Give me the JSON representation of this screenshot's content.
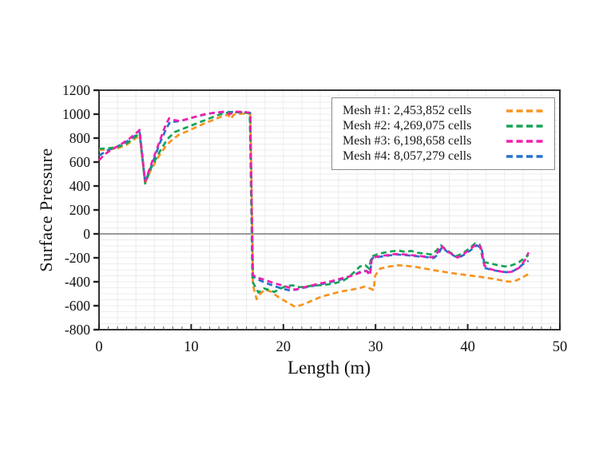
{
  "chart_data": {
    "type": "line",
    "title": "",
    "xlabel": "Length (m)",
    "ylabel": "Surface Pressure",
    "xlim": [
      0,
      50
    ],
    "ylim": [
      -800,
      1200
    ],
    "xticks": [
      0,
      10,
      20,
      30,
      40,
      50
    ],
    "yticks": [
      1200,
      1000,
      800,
      600,
      400,
      200,
      0,
      -200,
      -400,
      -600,
      -800
    ],
    "grid": {
      "on": true,
      "minor_x_step": 2,
      "minor_y_step": 50,
      "color": "#ececec"
    },
    "zero_line_color": "#7a7a7a",
    "axis_color": "#333333",
    "legend_position": "top-right",
    "line_style": "dashed",
    "series": [
      {
        "name": "Mesh #1: 2,453,852 cells",
        "color": "#F7941E",
        "points": [
          [
            0,
            700
          ],
          [
            1,
            705
          ],
          [
            2,
            715
          ],
          [
            3,
            745
          ],
          [
            4,
            800
          ],
          [
            4.4,
            820
          ],
          [
            5,
            425
          ],
          [
            5.6,
            530
          ],
          [
            6.5,
            650
          ],
          [
            7.3,
            740
          ],
          [
            8,
            790
          ],
          [
            8.7,
            830
          ],
          [
            9.5,
            855
          ],
          [
            10.5,
            890
          ],
          [
            11.5,
            925
          ],
          [
            12.5,
            955
          ],
          [
            13.3,
            980
          ],
          [
            14,
            995
          ],
          [
            14.3,
            960
          ],
          [
            14.6,
            995
          ],
          [
            15.5,
            1005
          ],
          [
            16.4,
            1000
          ],
          [
            16.55,
            400
          ],
          [
            16.7,
            -430
          ],
          [
            17.1,
            -545
          ],
          [
            17.5,
            -500
          ],
          [
            18,
            -465
          ],
          [
            18.6,
            -480
          ],
          [
            19.5,
            -530
          ],
          [
            20.5,
            -575
          ],
          [
            21.3,
            -610
          ],
          [
            22.3,
            -585
          ],
          [
            23.3,
            -550
          ],
          [
            24.3,
            -520
          ],
          [
            25.3,
            -500
          ],
          [
            26.3,
            -480
          ],
          [
            27.3,
            -467
          ],
          [
            28.2,
            -455
          ],
          [
            28.8,
            -440
          ],
          [
            29.4,
            -455
          ],
          [
            29.8,
            -470
          ],
          [
            29.95,
            -350
          ],
          [
            30.5,
            -290
          ],
          [
            31.5,
            -272
          ],
          [
            32.5,
            -262
          ],
          [
            33.5,
            -268
          ],
          [
            34.5,
            -278
          ],
          [
            35.5,
            -292
          ],
          [
            36.5,
            -305
          ],
          [
            37.5,
            -318
          ],
          [
            38.5,
            -330
          ],
          [
            39.5,
            -340
          ],
          [
            40.5,
            -350
          ],
          [
            41.5,
            -360
          ],
          [
            42.5,
            -372
          ],
          [
            43.5,
            -385
          ],
          [
            44.3,
            -397
          ],
          [
            44.8,
            -400
          ],
          [
            45.4,
            -385
          ],
          [
            46,
            -360
          ],
          [
            46.6,
            -335
          ]
        ]
      },
      {
        "name": "Mesh #2: 4,269,075 cells",
        "color": "#16A356",
        "points": [
          [
            0,
            710
          ],
          [
            1,
            715
          ],
          [
            2,
            725
          ],
          [
            3,
            755
          ],
          [
            4,
            815
          ],
          [
            4.4,
            845
          ],
          [
            5,
            420
          ],
          [
            5.7,
            560
          ],
          [
            6.6,
            690
          ],
          [
            7.4,
            790
          ],
          [
            8.2,
            850
          ],
          [
            9,
            875
          ],
          [
            10,
            905
          ],
          [
            11,
            935
          ],
          [
            12,
            965
          ],
          [
            13,
            995
          ],
          [
            13.8,
            1010
          ],
          [
            14.6,
            1015
          ],
          [
            15.5,
            1015
          ],
          [
            16.35,
            1008
          ],
          [
            16.5,
            300
          ],
          [
            16.65,
            -400
          ],
          [
            17.3,
            -490
          ],
          [
            17.9,
            -455
          ],
          [
            18.5,
            -470
          ],
          [
            19,
            -485
          ],
          [
            19.6,
            -460
          ],
          [
            20.3,
            -435
          ],
          [
            21,
            -430
          ],
          [
            21.8,
            -445
          ],
          [
            22.5,
            -440
          ],
          [
            23.3,
            -430
          ],
          [
            24.2,
            -428
          ],
          [
            25,
            -420
          ],
          [
            25.8,
            -408
          ],
          [
            26.5,
            -390
          ],
          [
            27.2,
            -355
          ],
          [
            27.8,
            -310
          ],
          [
            28.3,
            -272
          ],
          [
            28.9,
            -262
          ],
          [
            29.3,
            -290
          ],
          [
            29.55,
            -190
          ],
          [
            30.2,
            -170
          ],
          [
            31,
            -155
          ],
          [
            31.8,
            -145
          ],
          [
            32.5,
            -140
          ],
          [
            33.2,
            -150
          ],
          [
            33.9,
            -143
          ],
          [
            34.6,
            -158
          ],
          [
            35.4,
            -165
          ],
          [
            36.1,
            -172
          ],
          [
            36.6,
            -140
          ],
          [
            37.1,
            -95
          ],
          [
            37.7,
            -135
          ],
          [
            38.3,
            -165
          ],
          [
            38.8,
            -185
          ],
          [
            39.5,
            -160
          ],
          [
            40.2,
            -120
          ],
          [
            40.8,
            -80
          ],
          [
            41.3,
            -90
          ],
          [
            41.7,
            -235
          ],
          [
            42.4,
            -245
          ],
          [
            43.2,
            -260
          ],
          [
            44,
            -272
          ],
          [
            44.8,
            -262
          ],
          [
            45.5,
            -240
          ],
          [
            46.1,
            -205
          ],
          [
            46.6,
            -175
          ]
        ]
      },
      {
        "name": "Mesh #3: 6,198,658 cells",
        "color": "#F01FAE",
        "points": [
          [
            0,
            615
          ],
          [
            0.6,
            665
          ],
          [
            1.4,
            705
          ],
          [
            2.3,
            745
          ],
          [
            3.2,
            790
          ],
          [
            4,
            840
          ],
          [
            4.4,
            868
          ],
          [
            5,
            440
          ],
          [
            5.8,
            610
          ],
          [
            6.6,
            780
          ],
          [
            7.2,
            905
          ],
          [
            7.6,
            965
          ],
          [
            8.2,
            950
          ],
          [
            8.8,
            942
          ],
          [
            9.5,
            958
          ],
          [
            10.5,
            980
          ],
          [
            11.5,
            1000
          ],
          [
            12.5,
            1012
          ],
          [
            13.5,
            1020
          ],
          [
            14.2,
            1000
          ],
          [
            14.6,
            1020
          ],
          [
            15.5,
            1020
          ],
          [
            16.4,
            1012
          ],
          [
            16.55,
            300
          ],
          [
            16.7,
            -345
          ],
          [
            17.4,
            -370
          ],
          [
            18.2,
            -390
          ],
          [
            19,
            -412
          ],
          [
            19.8,
            -428
          ],
          [
            20.6,
            -448
          ],
          [
            21.3,
            -465
          ],
          [
            22,
            -450
          ],
          [
            22.8,
            -435
          ],
          [
            23.6,
            -420
          ],
          [
            24.4,
            -408
          ],
          [
            25.2,
            -395
          ],
          [
            26,
            -378
          ],
          [
            26.8,
            -362
          ],
          [
            27.6,
            -345
          ],
          [
            28.4,
            -322
          ],
          [
            29,
            -310
          ],
          [
            29.4,
            -345
          ],
          [
            29.6,
            -200
          ],
          [
            30.3,
            -188
          ],
          [
            31.2,
            -178
          ],
          [
            32.2,
            -168
          ],
          [
            33.2,
            -172
          ],
          [
            34.2,
            -180
          ],
          [
            35.2,
            -188
          ],
          [
            36.2,
            -196
          ],
          [
            36.7,
            -160
          ],
          [
            37.1,
            -98
          ],
          [
            37.7,
            -140
          ],
          [
            38.4,
            -175
          ],
          [
            38.9,
            -198
          ],
          [
            39.6,
            -165
          ],
          [
            40.3,
            -125
          ],
          [
            40.9,
            -88
          ],
          [
            41.4,
            -105
          ],
          [
            41.8,
            -265
          ],
          [
            42.5,
            -295
          ],
          [
            43.3,
            -310
          ],
          [
            44.1,
            -322
          ],
          [
            44.9,
            -315
          ],
          [
            45.6,
            -282
          ],
          [
            46.2,
            -220
          ],
          [
            46.6,
            -155
          ]
        ]
      },
      {
        "name": "Mesh #4: 8,057,279 cells",
        "color": "#2471CE",
        "points": [
          [
            0,
            655
          ],
          [
            1,
            700
          ],
          [
            2,
            730
          ],
          [
            3,
            770
          ],
          [
            4,
            825
          ],
          [
            4.4,
            850
          ],
          [
            5,
            435
          ],
          [
            5.8,
            590
          ],
          [
            6.6,
            760
          ],
          [
            7.3,
            880
          ],
          [
            7.7,
            935
          ],
          [
            8.4,
            938
          ],
          [
            9.2,
            950
          ],
          [
            10.2,
            972
          ],
          [
            11.2,
            992
          ],
          [
            12.2,
            1008
          ],
          [
            13.2,
            1016
          ],
          [
            14.2,
            1018
          ],
          [
            15.2,
            1018
          ],
          [
            16.4,
            1010
          ],
          [
            16.55,
            250
          ],
          [
            16.7,
            -355
          ],
          [
            17.5,
            -390
          ],
          [
            18.3,
            -415
          ],
          [
            19.1,
            -438
          ],
          [
            19.9,
            -458
          ],
          [
            20.7,
            -472
          ],
          [
            21.4,
            -465
          ],
          [
            22.2,
            -450
          ],
          [
            23,
            -437
          ],
          [
            23.8,
            -425
          ],
          [
            24.6,
            -412
          ],
          [
            25.4,
            -398
          ],
          [
            26.2,
            -382
          ],
          [
            27,
            -360
          ],
          [
            27.7,
            -340
          ],
          [
            28.4,
            -315
          ],
          [
            29,
            -308
          ],
          [
            29.4,
            -330
          ],
          [
            29.6,
            -205
          ],
          [
            30.4,
            -192
          ],
          [
            31.3,
            -182
          ],
          [
            32.3,
            -172
          ],
          [
            33.3,
            -177
          ],
          [
            34.3,
            -185
          ],
          [
            35.3,
            -192
          ],
          [
            36.3,
            -202
          ],
          [
            36.8,
            -170
          ],
          [
            37.2,
            -112
          ],
          [
            37.8,
            -150
          ],
          [
            38.5,
            -182
          ],
          [
            39,
            -200
          ],
          [
            39.7,
            -170
          ],
          [
            40.4,
            -132
          ],
          [
            41,
            -95
          ],
          [
            41.5,
            -120
          ],
          [
            41.9,
            -285
          ],
          [
            42.6,
            -300
          ],
          [
            43.4,
            -312
          ],
          [
            44.2,
            -320
          ],
          [
            45,
            -308
          ],
          [
            45.7,
            -272
          ],
          [
            46.2,
            -240
          ],
          [
            46.6,
            -225
          ]
        ]
      }
    ]
  },
  "legend": {
    "items": [
      {
        "label": "Mesh #1: 2,453,852 cells",
        "color": "#F7941E"
      },
      {
        "label": "Mesh #2: 4,269,075 cells",
        "color": "#16A356"
      },
      {
        "label": "Mesh #3: 6,198,658 cells",
        "color": "#F01FAE"
      },
      {
        "label": "Mesh #4: 8,057,279 cells",
        "color": "#2471CE"
      }
    ]
  }
}
